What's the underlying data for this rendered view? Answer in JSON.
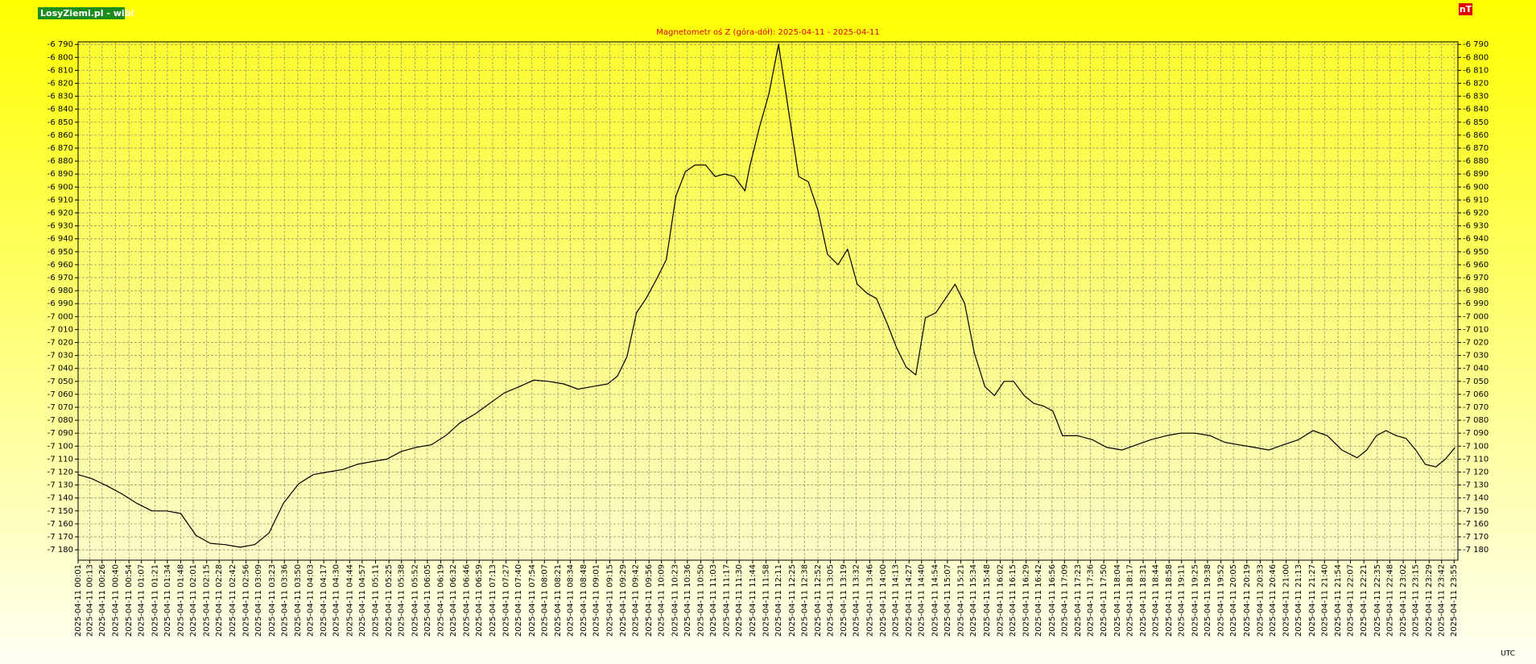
{
  "chart_data": {
    "type": "line",
    "title": "Magnetometr oś Z (góra-dół): 2025-04-11 - 2025-04-11",
    "brand": "LosyZiemi.pl - wibi",
    "unit_label": "nT",
    "x_axis_label": "UTC",
    "color": "#000000",
    "grid": true,
    "xlim": [
      1,
      1439
    ],
    "ylim": [
      -7188,
      -6788
    ],
    "x": [
      1,
      15,
      32,
      47,
      62,
      78,
      93,
      108,
      124,
      139,
      154,
      170,
      185,
      200,
      215,
      231,
      246,
      261,
      277,
      292,
      307,
      323,
      338,
      353,
      369,
      384,
      399,
      415,
      430,
      445,
      461,
      476,
      491,
      507,
      522,
      537,
      553,
      563,
      573,
      583,
      593,
      604,
      614,
      624,
      634,
      644,
      655,
      665,
      675,
      685,
      696,
      701,
      711,
      721,
      731,
      741,
      752,
      762,
      772,
      782,
      793,
      803,
      813,
      823,
      833,
      844,
      854,
      864,
      874,
      884,
      895,
      905,
      915,
      925,
      935,
      946,
      956,
      966,
      976,
      987,
      997,
      1007,
      1017,
      1027,
      1043,
      1058,
      1073,
      1089,
      1104,
      1119,
      1135,
      1150,
      1165,
      1181,
      1196,
      1211,
      1227,
      1242,
      1257,
      1273,
      1288,
      1303,
      1318,
      1334,
      1344,
      1354,
      1364,
      1375,
      1385,
      1395,
      1405,
      1416,
      1426,
      1436
    ],
    "values": [
      -7122,
      -7125,
      -7131,
      -7137,
      -7144,
      -7150,
      -7150,
      -7152,
      -7169,
      -7175,
      -7176,
      -7178,
      -7176,
      -7167,
      -7144,
      -7129,
      -7122,
      -7120,
      -7118,
      -7114,
      -7112,
      -7110,
      -7104,
      -7101,
      -7099,
      -7092,
      -7082,
      -7075,
      -7067,
      -7059,
      -7054,
      -7049,
      -7050,
      -7052,
      -7056,
      -7054,
      -7052,
      -7046,
      -7031,
      -6997,
      -6986,
      -6971,
      -6956,
      -6907,
      -6888,
      -6883,
      -6883,
      -6892,
      -6890,
      -6892,
      -6903,
      -6884,
      -6854,
      -6828,
      -6790,
      -6839,
      -6892,
      -6896,
      -6918,
      -6952,
      -6960,
      -6948,
      -6975,
      -6982,
      -6986,
      -7005,
      -7024,
      -7039,
      -7045,
      -7001,
      -6997,
      -6986,
      -6975,
      -6990,
      -7028,
      -7054,
      -7061,
      -7050,
      -7050,
      -7061,
      -7067,
      -7069,
      -7073,
      -7092,
      -7092,
      -7095,
      -7101,
      -7103,
      -7099,
      -7095,
      -7092,
      -7090,
      -7090,
      -7092,
      -7097,
      -7099,
      -7101,
      -7103,
      -7099,
      -7095,
      -7088,
      -7092,
      -7103,
      -7109,
      -7103,
      -7092,
      -7088,
      -7092,
      -7094,
      -7103,
      -7114,
      -7116,
      -7110,
      -7101
    ],
    "yticks": [
      {
        "value": -6790,
        "label": "-6 790"
      },
      {
        "value": -6800,
        "label": "-6 800"
      },
      {
        "value": -6810,
        "label": "-6 810"
      },
      {
        "value": -6820,
        "label": "-6 820"
      },
      {
        "value": -6830,
        "label": "-6 830"
      },
      {
        "value": -6840,
        "label": "-6 840"
      },
      {
        "value": -6850,
        "label": "-6 850"
      },
      {
        "value": -6860,
        "label": "-6 860"
      },
      {
        "value": -6870,
        "label": "-6 870"
      },
      {
        "value": -6880,
        "label": "-6 880"
      },
      {
        "value": -6890,
        "label": "-6 890"
      },
      {
        "value": -6900,
        "label": "-6 900"
      },
      {
        "value": -6910,
        "label": "-6 910"
      },
      {
        "value": -6920,
        "label": "-6 920"
      },
      {
        "value": -6930,
        "label": "-6 930"
      },
      {
        "value": -6940,
        "label": "-6 940"
      },
      {
        "value": -6950,
        "label": "-6 950"
      },
      {
        "value": -6960,
        "label": "-6 960"
      },
      {
        "value": -6970,
        "label": "-6 970"
      },
      {
        "value": -6980,
        "label": "-6 980"
      },
      {
        "value": -6990,
        "label": "-6 990"
      },
      {
        "value": -7000,
        "label": "-7 000"
      },
      {
        "value": -7010,
        "label": "-7 010"
      },
      {
        "value": -7020,
        "label": "-7 020"
      },
      {
        "value": -7030,
        "label": "-7 030"
      },
      {
        "value": -7040,
        "label": "-7 040"
      },
      {
        "value": -7050,
        "label": "-7 050"
      },
      {
        "value": -7060,
        "label": "-7 060"
      },
      {
        "value": -7070,
        "label": "-7 070"
      },
      {
        "value": -7080,
        "label": "-7 080"
      },
      {
        "value": -7090,
        "label": "-7 090"
      },
      {
        "value": -7100,
        "label": "-7 100"
      },
      {
        "value": -7110,
        "label": "-7 110"
      },
      {
        "value": -7120,
        "label": "-7 120"
      },
      {
        "value": -7130,
        "label": "-7 130"
      },
      {
        "value": -7140,
        "label": "-7 140"
      },
      {
        "value": -7150,
        "label": "-7 150"
      },
      {
        "value": -7160,
        "label": "-7 160"
      },
      {
        "value": -7170,
        "label": "-7 170"
      },
      {
        "value": -7180,
        "label": "-7 180"
      }
    ],
    "xticks": [
      {
        "value": 1,
        "label": "2025-04-11 00:01"
      },
      {
        "value": 13,
        "label": "2025-04-11 00:13"
      },
      {
        "value": 26,
        "label": "2025-04-11 00:26"
      },
      {
        "value": 40,
        "label": "2025-04-11 00:40"
      },
      {
        "value": 54,
        "label": "2025-04-11 00:54"
      },
      {
        "value": 67,
        "label": "2025-04-11 01:07"
      },
      {
        "value": 81,
        "label": "2025-04-11 01:21"
      },
      {
        "value": 94,
        "label": "2025-04-11 01:34"
      },
      {
        "value": 108,
        "label": "2025-04-11 01:48"
      },
      {
        "value": 121,
        "label": "2025-04-11 02:01"
      },
      {
        "value": 135,
        "label": "2025-04-11 02:15"
      },
      {
        "value": 148,
        "label": "2025-04-11 02:28"
      },
      {
        "value": 162,
        "label": "2025-04-11 02:42"
      },
      {
        "value": 176,
        "label": "2025-04-11 02:56"
      },
      {
        "value": 189,
        "label": "2025-04-11 03:09"
      },
      {
        "value": 203,
        "label": "2025-04-11 03:23"
      },
      {
        "value": 216,
        "label": "2025-04-11 03:36"
      },
      {
        "value": 230,
        "label": "2025-04-11 03:50"
      },
      {
        "value": 243,
        "label": "2025-04-11 04:03"
      },
      {
        "value": 257,
        "label": "2025-04-11 04:17"
      },
      {
        "value": 270,
        "label": "2025-04-11 04:30"
      },
      {
        "value": 284,
        "label": "2025-04-11 04:44"
      },
      {
        "value": 297,
        "label": "2025-04-11 04:57"
      },
      {
        "value": 311,
        "label": "2025-04-11 05:11"
      },
      {
        "value": 325,
        "label": "2025-04-11 05:25"
      },
      {
        "value": 338,
        "label": "2025-04-11 05:38"
      },
      {
        "value": 352,
        "label": "2025-04-11 05:52"
      },
      {
        "value": 365,
        "label": "2025-04-11 06:05"
      },
      {
        "value": 379,
        "label": "2025-04-11 06:19"
      },
      {
        "value": 392,
        "label": "2025-04-11 06:32"
      },
      {
        "value": 406,
        "label": "2025-04-11 06:46"
      },
      {
        "value": 419,
        "label": "2025-04-11 06:59"
      },
      {
        "value": 433,
        "label": "2025-04-11 07:13"
      },
      {
        "value": 447,
        "label": "2025-04-11 07:27"
      },
      {
        "value": 460,
        "label": "2025-04-11 07:40"
      },
      {
        "value": 474,
        "label": "2025-04-11 07:54"
      },
      {
        "value": 487,
        "label": "2025-04-11 08:07"
      },
      {
        "value": 501,
        "label": "2025-04-11 08:21"
      },
      {
        "value": 514,
        "label": "2025-04-11 08:34"
      },
      {
        "value": 528,
        "label": "2025-04-11 08:48"
      },
      {
        "value": 541,
        "label": "2025-04-11 09:01"
      },
      {
        "value": 555,
        "label": "2025-04-11 09:15"
      },
      {
        "value": 569,
        "label": "2025-04-11 09:29"
      },
      {
        "value": 582,
        "label": "2025-04-11 09:42"
      },
      {
        "value": 596,
        "label": "2025-04-11 09:56"
      },
      {
        "value": 609,
        "label": "2025-04-11 10:09"
      },
      {
        "value": 623,
        "label": "2025-04-11 10:23"
      },
      {
        "value": 636,
        "label": "2025-04-11 10:36"
      },
      {
        "value": 650,
        "label": "2025-04-11 10:50"
      },
      {
        "value": 663,
        "label": "2025-04-11 11:03"
      },
      {
        "value": 677,
        "label": "2025-04-11 11:17"
      },
      {
        "value": 690,
        "label": "2025-04-11 11:30"
      },
      {
        "value": 704,
        "label": "2025-04-11 11:44"
      },
      {
        "value": 718,
        "label": "2025-04-11 11:58"
      },
      {
        "value": 731,
        "label": "2025-04-11 12:11"
      },
      {
        "value": 745,
        "label": "2025-04-11 12:25"
      },
      {
        "value": 758,
        "label": "2025-04-11 12:38"
      },
      {
        "value": 772,
        "label": "2025-04-11 12:52"
      },
      {
        "value": 785,
        "label": "2025-04-11 13:05"
      },
      {
        "value": 799,
        "label": "2025-04-11 13:19"
      },
      {
        "value": 812,
        "label": "2025-04-11 13:32"
      },
      {
        "value": 826,
        "label": "2025-04-11 13:46"
      },
      {
        "value": 840,
        "label": "2025-04-11 14:00"
      },
      {
        "value": 853,
        "label": "2025-04-11 14:13"
      },
      {
        "value": 867,
        "label": "2025-04-11 14:27"
      },
      {
        "value": 880,
        "label": "2025-04-11 14:40"
      },
      {
        "value": 894,
        "label": "2025-04-11 14:54"
      },
      {
        "value": 907,
        "label": "2025-04-11 15:07"
      },
      {
        "value": 921,
        "label": "2025-04-11 15:21"
      },
      {
        "value": 934,
        "label": "2025-04-11 15:34"
      },
      {
        "value": 948,
        "label": "2025-04-11 15:48"
      },
      {
        "value": 962,
        "label": "2025-04-11 16:02"
      },
      {
        "value": 975,
        "label": "2025-04-11 16:15"
      },
      {
        "value": 989,
        "label": "2025-04-11 16:29"
      },
      {
        "value": 1002,
        "label": "2025-04-11 16:42"
      },
      {
        "value": 1016,
        "label": "2025-04-11 16:56"
      },
      {
        "value": 1029,
        "label": "2025-04-11 17:09"
      },
      {
        "value": 1043,
        "label": "2025-04-11 17:23"
      },
      {
        "value": 1056,
        "label": "2025-04-11 17:36"
      },
      {
        "value": 1070,
        "label": "2025-04-11 17:50"
      },
      {
        "value": 1084,
        "label": "2025-04-11 18:04"
      },
      {
        "value": 1097,
        "label": "2025-04-11 18:17"
      },
      {
        "value": 1111,
        "label": "2025-04-11 18:31"
      },
      {
        "value": 1124,
        "label": "2025-04-11 18:44"
      },
      {
        "value": 1138,
        "label": "2025-04-11 18:58"
      },
      {
        "value": 1151,
        "label": "2025-04-11 19:11"
      },
      {
        "value": 1165,
        "label": "2025-04-11 19:25"
      },
      {
        "value": 1178,
        "label": "2025-04-11 19:38"
      },
      {
        "value": 1192,
        "label": "2025-04-11 19:52"
      },
      {
        "value": 1205,
        "label": "2025-04-11 20:05"
      },
      {
        "value": 1219,
        "label": "2025-04-11 20:19"
      },
      {
        "value": 1233,
        "label": "2025-04-11 20:33"
      },
      {
        "value": 1246,
        "label": "2025-04-11 20:46"
      },
      {
        "value": 1260,
        "label": "2025-04-11 21:00"
      },
      {
        "value": 1273,
        "label": "2025-04-11 21:13"
      },
      {
        "value": 1287,
        "label": "2025-04-11 21:27"
      },
      {
        "value": 1300,
        "label": "2025-04-11 21:40"
      },
      {
        "value": 1314,
        "label": "2025-04-11 21:54"
      },
      {
        "value": 1327,
        "label": "2025-04-11 22:07"
      },
      {
        "value": 1341,
        "label": "2025-04-11 22:21"
      },
      {
        "value": 1355,
        "label": "2025-04-11 22:35"
      },
      {
        "value": 1368,
        "label": "2025-04-11 22:48"
      },
      {
        "value": 1382,
        "label": "2025-04-11 23:02"
      },
      {
        "value": 1395,
        "label": "2025-04-11 23:15"
      },
      {
        "value": 1409,
        "label": "2025-04-11 23:29"
      },
      {
        "value": 1422,
        "label": "2025-04-11 23:42"
      },
      {
        "value": 1435,
        "label": "2025-04-11 23:55"
      }
    ]
  }
}
